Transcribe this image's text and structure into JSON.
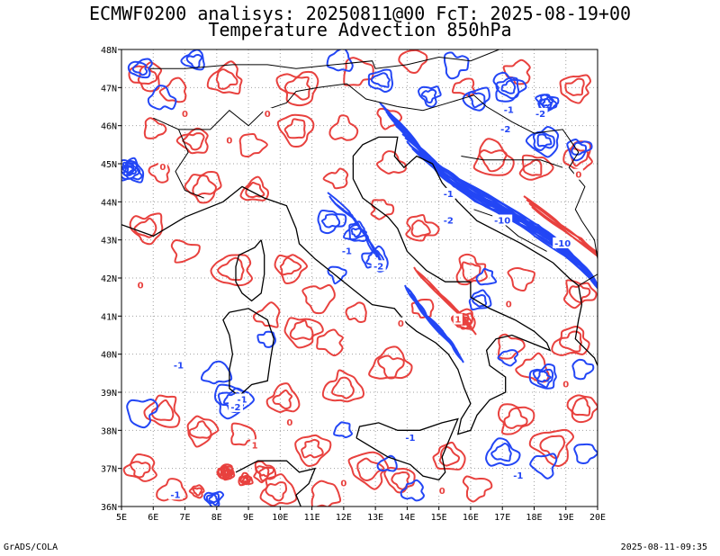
{
  "header": {
    "title_line1": "ECMWF0200 analisys: 20250811@00 FcT: 2025-08-19+00",
    "title_line2": "Temperature Advection 850hPa"
  },
  "footer": {
    "left": "GrADS/COLA",
    "right": "2025-08-11-09:35"
  },
  "map": {
    "lat_labels": [
      "48N",
      "47N",
      "46N",
      "45N",
      "44N",
      "43N",
      "42N",
      "41N",
      "40N",
      "39N",
      "38N",
      "37N",
      "36N"
    ],
    "lon_labels": [
      "5E",
      "6E",
      "7E",
      "8E",
      "9E",
      "10E",
      "11E",
      "12E",
      "13E",
      "14E",
      "15E",
      "16E",
      "17E",
      "18E",
      "19E",
      "20E"
    ],
    "lat_range": [
      36,
      48
    ],
    "lon_range": [
      5,
      20
    ],
    "colors": {
      "positive_contour": "#e8413e",
      "negative_contour": "#2346f5",
      "coastline": "#000000",
      "grid": "#a0a0a0"
    },
    "contour_labels": [
      {
        "text": "-1",
        "sign": "neg",
        "lon": 15.3,
        "lat": 44.2
      },
      {
        "text": "-2",
        "sign": "neg",
        "lon": 15.3,
        "lat": 43.5
      },
      {
        "text": "-1",
        "sign": "neg",
        "lon": 17.2,
        "lat": 46.4
      },
      {
        "text": "-2",
        "sign": "neg",
        "lon": 17.1,
        "lat": 45.9
      },
      {
        "text": "-2",
        "sign": "neg",
        "lon": 18.2,
        "lat": 46.3
      },
      {
        "text": "-10",
        "sign": "neg",
        "lon": 17.0,
        "lat": 43.5
      },
      {
        "text": "-10",
        "sign": "neg",
        "lon": 18.9,
        "lat": 42.9
      },
      {
        "text": "-1",
        "sign": "neg",
        "lon": 12.1,
        "lat": 42.7
      },
      {
        "text": "-2",
        "sign": "neg",
        "lon": 13.1,
        "lat": 42.3
      },
      {
        "text": "-1",
        "sign": "neg",
        "lon": 8.8,
        "lat": 38.8
      },
      {
        "text": "-2",
        "sign": "neg",
        "lon": 8.6,
        "lat": 38.6
      },
      {
        "text": "-1",
        "sign": "neg",
        "lon": 6.8,
        "lat": 39.7
      },
      {
        "text": "-1",
        "sign": "neg",
        "lon": 14.1,
        "lat": 37.8
      },
      {
        "text": "-1",
        "sign": "neg",
        "lon": 17.5,
        "lat": 36.8
      },
      {
        "text": "-1",
        "sign": "neg",
        "lon": 6.7,
        "lat": 36.3
      },
      {
        "text": "1",
        "sign": "pos",
        "lon": 15.6,
        "lat": 40.9
      },
      {
        "text": "1",
        "sign": "pos",
        "lon": 9.2,
        "lat": 37.6
      },
      {
        "text": "0",
        "sign": "pos",
        "lon": 7.0,
        "lat": 46.3
      },
      {
        "text": "0",
        "sign": "pos",
        "lon": 9.6,
        "lat": 46.3
      },
      {
        "text": "0",
        "sign": "pos",
        "lon": 6.3,
        "lat": 44.9
      },
      {
        "text": "0",
        "sign": "pos",
        "lon": 5.6,
        "lat": 41.8
      },
      {
        "text": "0",
        "sign": "pos",
        "lon": 10.3,
        "lat": 38.2
      },
      {
        "text": "0",
        "sign": "pos",
        "lon": 13.8,
        "lat": 40.8
      },
      {
        "text": "0",
        "sign": "pos",
        "lon": 17.2,
        "lat": 41.3
      },
      {
        "text": "0",
        "sign": "pos",
        "lon": 19.0,
        "lat": 39.2
      },
      {
        "text": "0",
        "sign": "pos",
        "lon": 19.4,
        "lat": 44.7
      },
      {
        "text": "0",
        "sign": "pos",
        "lon": 12.0,
        "lat": 36.6
      },
      {
        "text": "0",
        "sign": "pos",
        "lon": 15.1,
        "lat": 36.4
      },
      {
        "text": "0",
        "sign": "pos",
        "lon": 8.4,
        "lat": 45.6
      }
    ]
  }
}
